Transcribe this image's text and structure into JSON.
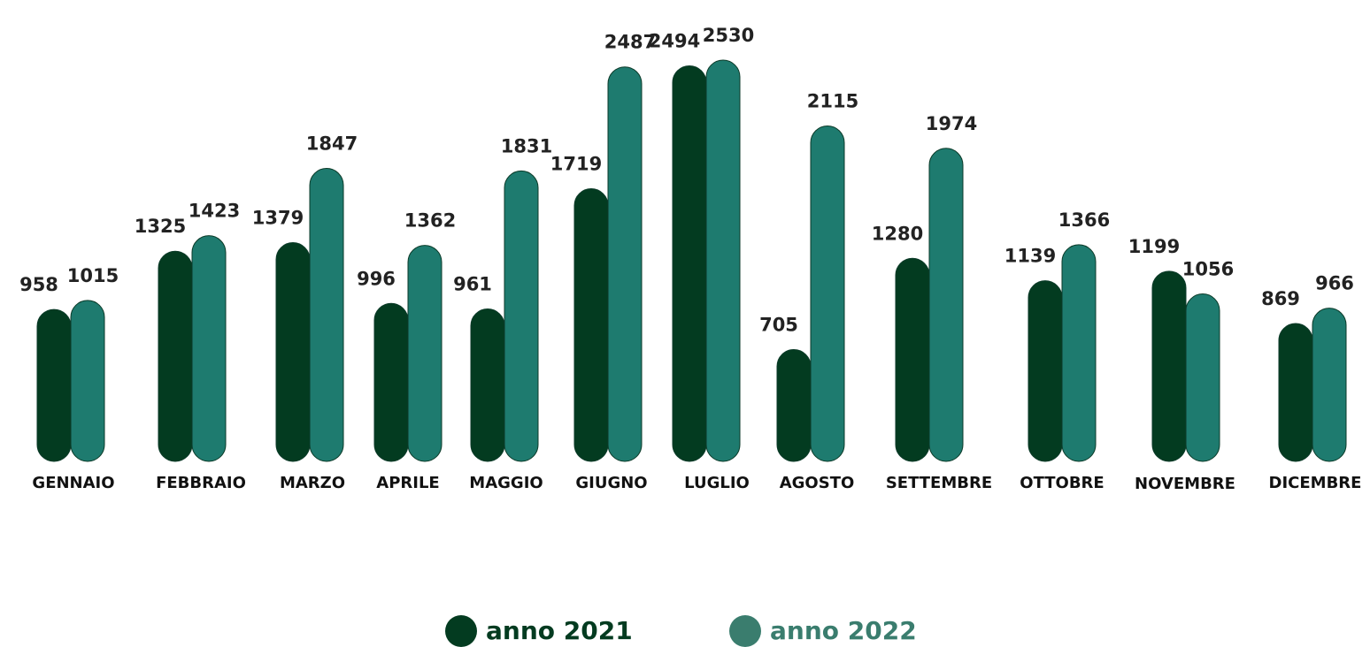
{
  "chart_data": {
    "type": "bar",
    "categories": [
      "GENNAIO",
      "FEBBRAIO",
      "MARZO",
      "APRILE",
      "MAGGIO",
      "GIUGNO",
      "LUGLIO",
      "AGOSTO",
      "SETTEMBRE",
      "OTTOBRE",
      "NOVEMBRE",
      "DICEMBRE"
    ],
    "series": [
      {
        "name": "anno 2021",
        "color": "#033b20",
        "values": [
          958,
          1325,
          1379,
          996,
          961,
          1719,
          2494,
          705,
          1280,
          1139,
          1199,
          869
        ]
      },
      {
        "name": "anno 2022",
        "color": "#1e7b6f",
        "values": [
          1015,
          1423,
          1847,
          1362,
          1831,
          2487,
          2530,
          2115,
          1974,
          1366,
          1056,
          966
        ]
      }
    ],
    "legend": "bottom"
  }
}
